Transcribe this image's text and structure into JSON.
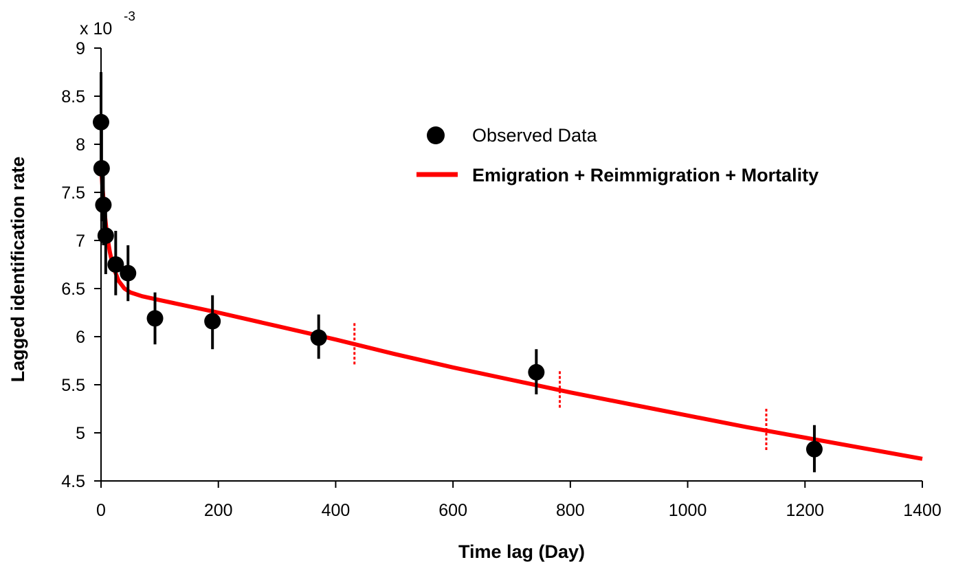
{
  "chart_data": {
    "type": "scatter",
    "xlabel": "Time lag  (Day)",
    "ylabel": "Lagged identification rate",
    "y_multiplier_label": "x 10",
    "y_multiplier_exponent": "-3",
    "xlim": [
      0,
      1400
    ],
    "ylim": [
      4.5,
      9
    ],
    "x_ticks": [
      0,
      200,
      400,
      600,
      800,
      1000,
      1200,
      1400
    ],
    "y_ticks": [
      4.5,
      5,
      5.5,
      6,
      6.5,
      7,
      7.5,
      8,
      8.5,
      9
    ],
    "y_tick_labels": [
      "4.5",
      "5",
      "5.5",
      "6",
      "6.5",
      "7",
      "7.5",
      "8",
      "8.5",
      "9"
    ],
    "grid": false,
    "legend_position": "top-right",
    "series": [
      {
        "name": "Observed Data",
        "kind": "points_with_error_bars",
        "color": "#000000",
        "points": [
          {
            "x": 0,
            "y": 8.23,
            "err_low": 7.7,
            "err_high": 8.75
          },
          {
            "x": 1,
            "y": 7.75,
            "err_low": 7.2,
            "err_high": 8.2
          },
          {
            "x": 4,
            "y": 7.37,
            "err_low": 6.95,
            "err_high": 7.7
          },
          {
            "x": 8,
            "y": 7.05,
            "err_low": 6.65,
            "err_high": 7.35
          },
          {
            "x": 25,
            "y": 6.75,
            "err_low": 6.43,
            "err_high": 7.1
          },
          {
            "x": 46,
            "y": 6.66,
            "err_low": 6.37,
            "err_high": 6.95
          },
          {
            "x": 92,
            "y": 6.19,
            "err_low": 5.92,
            "err_high": 6.46
          },
          {
            "x": 190,
            "y": 6.16,
            "err_low": 5.87,
            "err_high": 6.43
          },
          {
            "x": 371,
            "y": 5.99,
            "err_low": 5.77,
            "err_high": 6.23
          },
          {
            "x": 742,
            "y": 5.63,
            "err_low": 5.4,
            "err_high": 5.87
          },
          {
            "x": 1216,
            "y": 4.83,
            "err_low": 4.59,
            "err_high": 5.08
          }
        ]
      },
      {
        "name": "Emigration + Reimmigration + Mortality",
        "kind": "line",
        "color": "#ff0000",
        "points": [
          {
            "x": 0,
            "y": 7.78
          },
          {
            "x": 2,
            "y": 7.6
          },
          {
            "x": 5,
            "y": 7.35
          },
          {
            "x": 10,
            "y": 7.07
          },
          {
            "x": 15,
            "y": 6.88
          },
          {
            "x": 20,
            "y": 6.74
          },
          {
            "x": 30,
            "y": 6.58
          },
          {
            "x": 40,
            "y": 6.5
          },
          {
            "x": 50,
            "y": 6.46
          },
          {
            "x": 70,
            "y": 6.42
          },
          {
            "x": 100,
            "y": 6.38
          },
          {
            "x": 200,
            "y": 6.25
          },
          {
            "x": 300,
            "y": 6.11
          },
          {
            "x": 400,
            "y": 5.97
          },
          {
            "x": 500,
            "y": 5.82
          },
          {
            "x": 600,
            "y": 5.68
          },
          {
            "x": 700,
            "y": 5.55
          },
          {
            "x": 800,
            "y": 5.42
          },
          {
            "x": 900,
            "y": 5.3
          },
          {
            "x": 1000,
            "y": 5.18
          },
          {
            "x": 1100,
            "y": 5.06
          },
          {
            "x": 1200,
            "y": 4.95
          },
          {
            "x": 1300,
            "y": 4.84
          },
          {
            "x": 1400,
            "y": 4.73
          }
        ]
      }
    ],
    "markers": [
      {
        "kind": "dotted_vertical",
        "color": "#ff0000",
        "x": 432,
        "y_from": 5.7,
        "y_to": 6.14
      },
      {
        "kind": "dotted_vertical",
        "color": "#ff0000",
        "x": 782,
        "y_from": 5.24,
        "y_to": 5.64
      },
      {
        "kind": "dotted_vertical",
        "color": "#ff0000",
        "x": 1134,
        "y_from": 4.8,
        "y_to": 5.25
      }
    ]
  }
}
